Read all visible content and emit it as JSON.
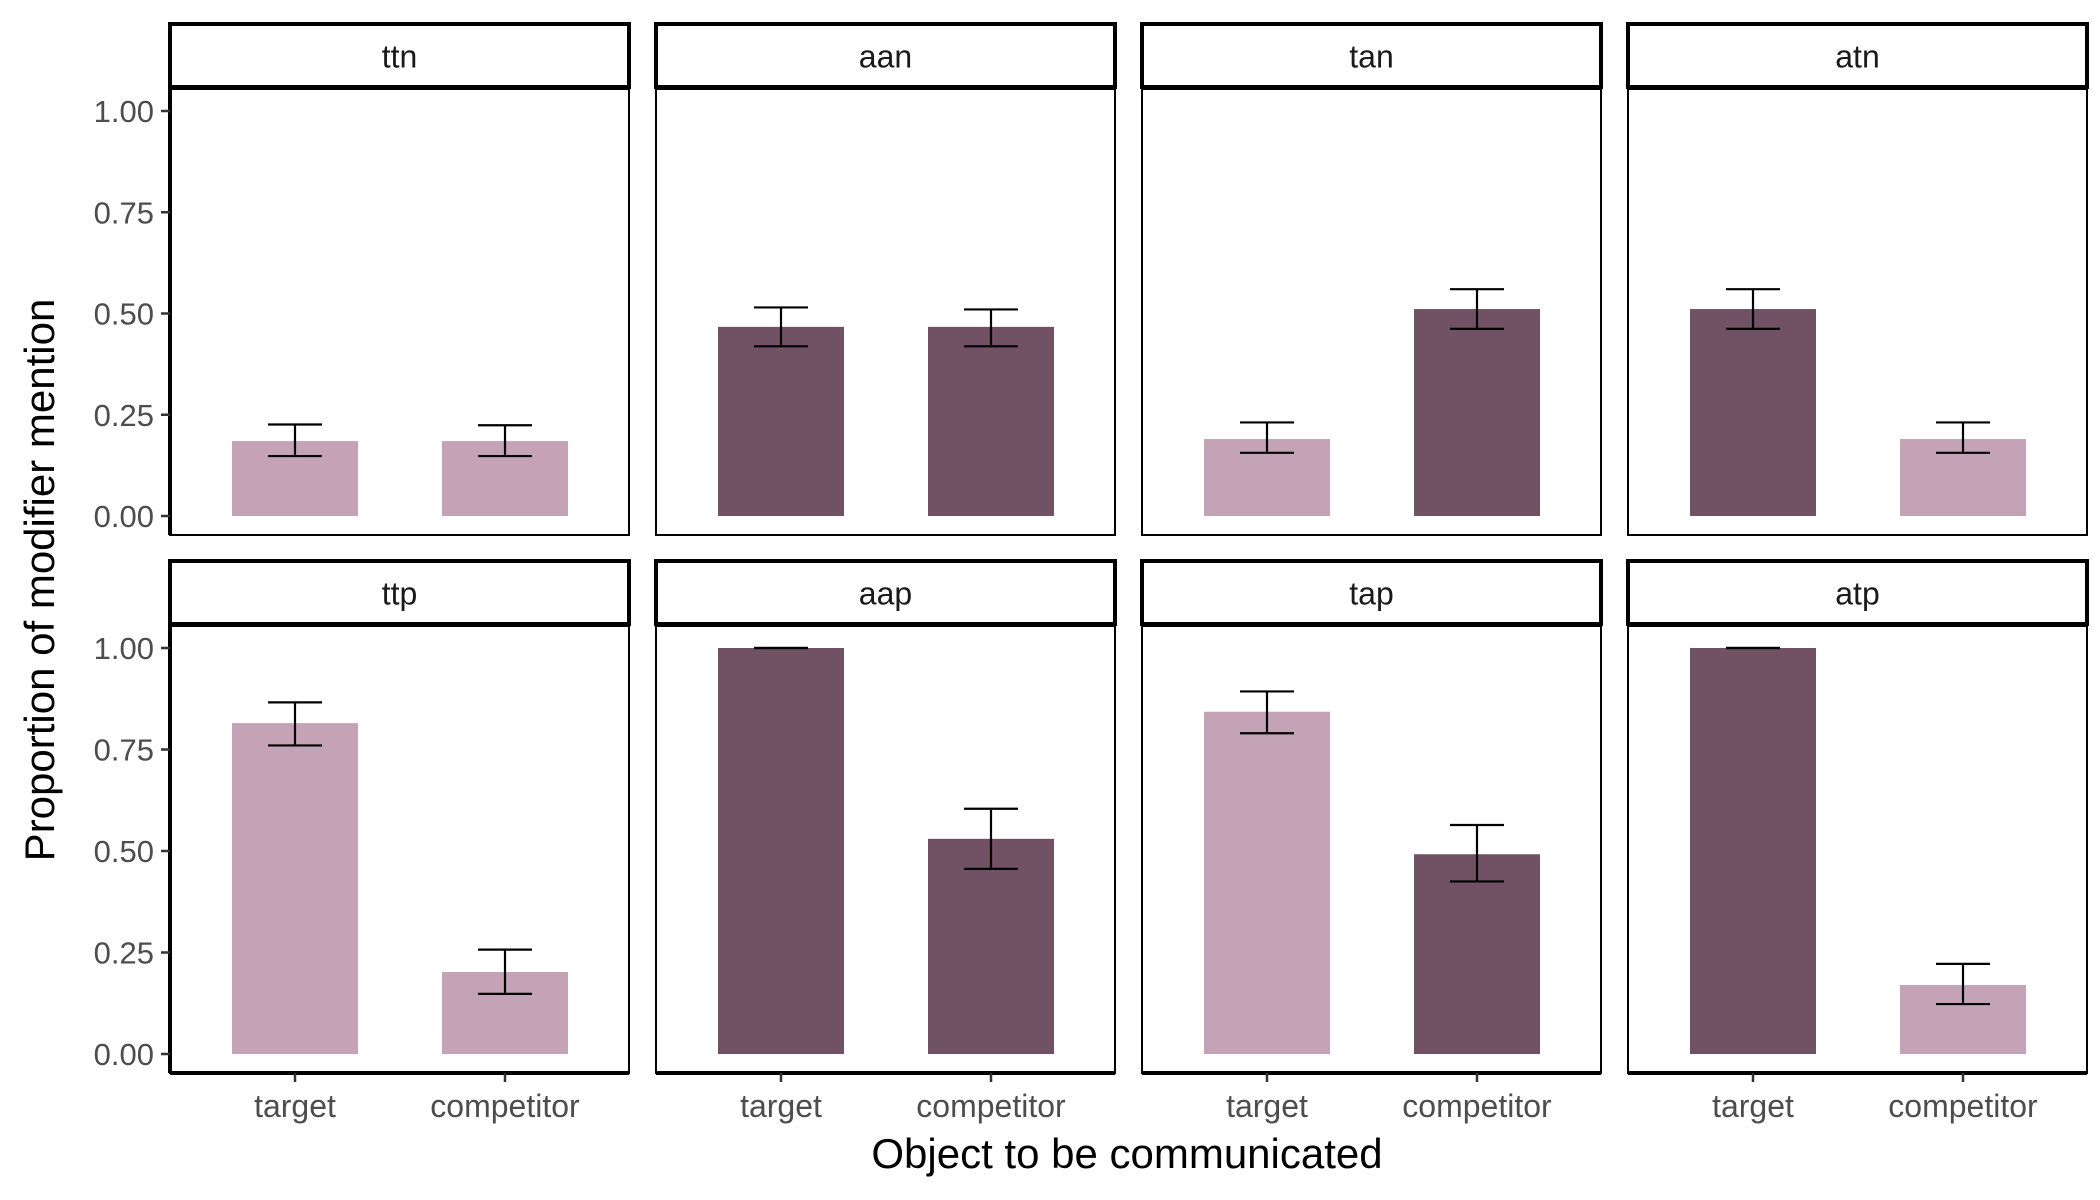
{
  "chart_data": {
    "type": "bar",
    "xlabel": "Object to be communicated",
    "ylabel": "Proportion of modifier mention",
    "ylim": [
      0,
      1.2
    ],
    "yticks": [
      "0.00",
      "0.25",
      "0.50",
      "0.75",
      "1.00"
    ],
    "ytick_values": [
      0,
      0.25,
      0.5,
      0.75,
      1.0
    ],
    "categories": [
      "target",
      "competitor"
    ],
    "grid": false,
    "legend": "none",
    "colors": {
      "light": "#c5a3b7",
      "dark": "#715264"
    },
    "facets": [
      {
        "name": "ttn",
        "values": [
          0.185,
          0.185
        ],
        "errors": [
          [
            0.148,
            0.226
          ],
          [
            0.148,
            0.224
          ]
        ],
        "shades": [
          "light",
          "light"
        ]
      },
      {
        "name": "aan",
        "values": [
          0.467,
          0.467
        ],
        "errors": [
          [
            0.419,
            0.515
          ],
          [
            0.419,
            0.51
          ]
        ],
        "shades": [
          "dark",
          "dark"
        ]
      },
      {
        "name": "tan",
        "values": [
          0.19,
          0.511
        ],
        "errors": [
          [
            0.156,
            0.231
          ],
          [
            0.462,
            0.56
          ]
        ],
        "shades": [
          "light",
          "dark"
        ]
      },
      {
        "name": "atn",
        "values": [
          0.511,
          0.19
        ],
        "errors": [
          [
            0.462,
            0.56
          ],
          [
            0.156,
            0.231
          ]
        ],
        "shades": [
          "dark",
          "light"
        ]
      },
      {
        "name": "ttp",
        "values": [
          0.815,
          0.202
        ],
        "errors": [
          [
            0.76,
            0.866
          ],
          [
            0.148,
            0.257
          ]
        ],
        "shades": [
          "light",
          "light"
        ]
      },
      {
        "name": "aap",
        "values": [
          1.0,
          0.53
        ],
        "errors": [
          [
            1.0,
            1.0
          ],
          [
            0.456,
            0.604
          ]
        ],
        "shades": [
          "dark",
          "dark"
        ]
      },
      {
        "name": "tap",
        "values": [
          0.843,
          0.492
        ],
        "errors": [
          [
            0.79,
            0.893
          ],
          [
            0.425,
            0.564
          ]
        ],
        "shades": [
          "light",
          "dark"
        ]
      },
      {
        "name": "atp",
        "values": [
          1.0,
          0.17
        ],
        "errors": [
          [
            1.0,
            1.0
          ],
          [
            0.123,
            0.222
          ]
        ],
        "shades": [
          "dark",
          "light"
        ]
      }
    ]
  }
}
